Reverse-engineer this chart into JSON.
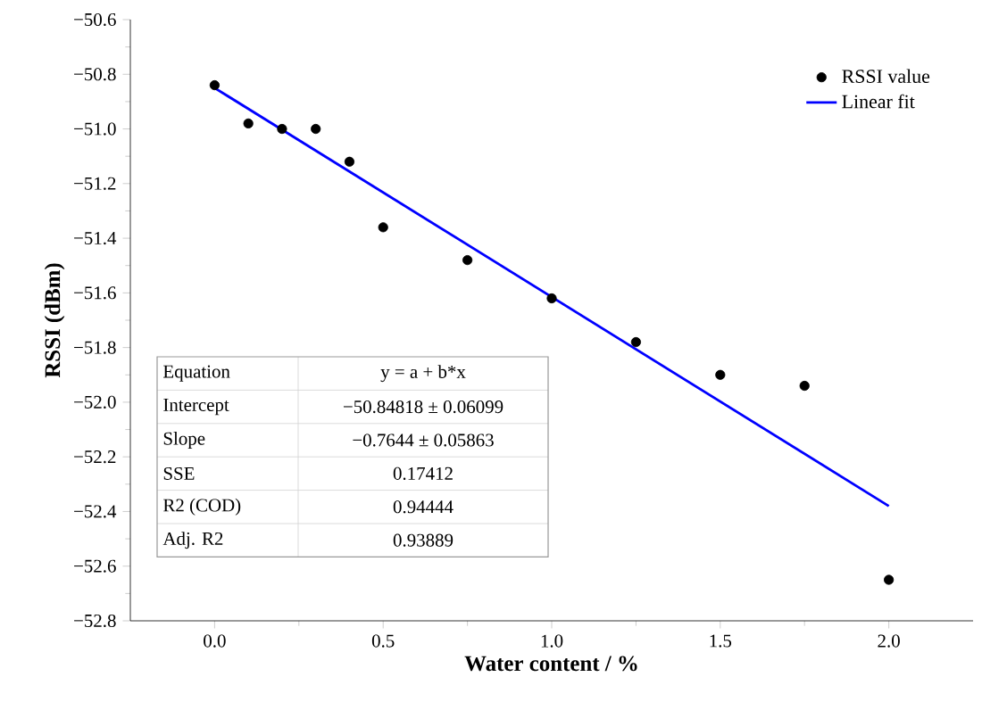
{
  "chart_data": {
    "type": "scatter",
    "xlabel": "Water content / %",
    "ylabel": "RSSI (dBm)",
    "xlim": [
      -0.25,
      2.25
    ],
    "xticks": [
      {
        "value": 0,
        "label": "0.0"
      },
      {
        "value": 0.5,
        "label": "0.5"
      },
      {
        "value": 1,
        "label": "1.0"
      },
      {
        "value": 1.5,
        "label": "1.5"
      },
      {
        "value": 2,
        "label": "2.0"
      }
    ],
    "ylim": [
      -52.8,
      -50.6
    ],
    "yticks": [
      {
        "value": -52.8,
        "label": "−52.8"
      },
      {
        "value": -52.6,
        "label": "−52.6"
      },
      {
        "value": -52.4,
        "label": "−52.4"
      },
      {
        "value": -52.2,
        "label": "−52.2"
      },
      {
        "value": -52.0,
        "label": "−52.0"
      },
      {
        "value": -51.8,
        "label": "−51.8"
      },
      {
        "value": -51.6,
        "label": "−51.6"
      },
      {
        "value": -51.4,
        "label": "−51.4"
      },
      {
        "value": -51.2,
        "label": "−51.2"
      },
      {
        "value": -51.0,
        "label": "−51.0"
      },
      {
        "value": -50.8,
        "label": "−50.8"
      },
      {
        "value": -50.6,
        "label": "−50.6"
      }
    ],
    "legend": "top right",
    "grid": false,
    "marker": "circle",
    "series": [
      {
        "name": "RSSI value",
        "color": "#000000",
        "x": [
          0,
          0.1,
          0.2,
          0.3,
          0.4,
          0.5,
          0.75,
          1.0,
          1.25,
          1.5,
          1.75,
          2.0
        ],
        "values": [
          -50.84,
          -50.98,
          -51.0,
          -51.0,
          -51.12,
          -51.36,
          -51.48,
          -51.62,
          -51.78,
          -51.9,
          -51.94,
          -52.65
        ]
      },
      {
        "name": "Linear fit",
        "type": "line",
        "color": "#0000ff",
        "marker": "none",
        "line_style": "solid",
        "x": [
          0,
          2
        ],
        "values": [
          -50.85,
          -52.38
        ]
      }
    ],
    "annotations": [
      "Equation",
      "y = a + b*x",
      "Intercept",
      "−50.84818 ± 0.06099",
      "Slope",
      "−0.7644 ± 0.05863",
      "SSE",
      "0.17412",
      "R2 (COD)",
      "0.94444",
      "Adj. R2",
      "0.93889"
    ]
  }
}
